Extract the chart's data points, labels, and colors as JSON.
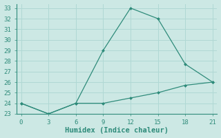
{
  "line1_x": [
    0,
    3,
    6,
    9,
    12,
    15,
    18,
    21
  ],
  "line1_y": [
    24,
    23,
    24,
    29,
    33,
    32,
    27.7,
    26
  ],
  "line2_x": [
    0,
    3,
    6,
    9,
    12,
    15,
    18,
    21
  ],
  "line2_y": [
    24,
    23,
    24,
    24,
    24.5,
    25,
    25.7,
    26
  ],
  "line_color": "#2e8b7a",
  "bg_color": "#cce8e4",
  "grid_color": "#b0d8d4",
  "xlabel": "Humidex (Indice chaleur)",
  "xlim": [
    -0.5,
    21.5
  ],
  "ylim": [
    23,
    33.4
  ],
  "xticks": [
    0,
    3,
    6,
    9,
    12,
    15,
    18,
    21
  ],
  "yticks": [
    23,
    24,
    25,
    26,
    27,
    28,
    29,
    30,
    31,
    32,
    33
  ],
  "xlabel_fontsize": 7.5,
  "tick_fontsize": 6.5
}
